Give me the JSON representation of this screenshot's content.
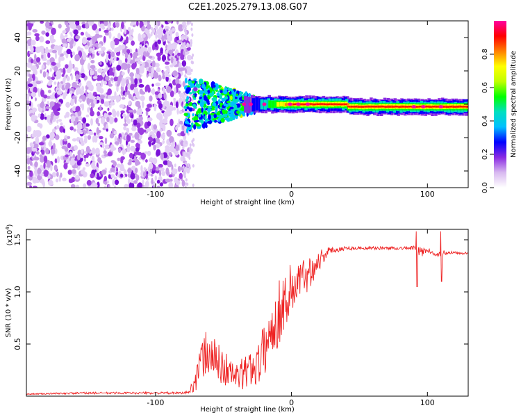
{
  "title": "C2E1.2025.279.13.08.G07",
  "chart_data": [
    {
      "type": "heatmap",
      "name": "spectrogram",
      "xlabel": "Height of straight line (km)",
      "ylabel": "Frequency (Hz)",
      "xlim": [
        -195,
        130
      ],
      "ylim": [
        -50,
        50
      ],
      "xticks": [
        -100,
        0,
        100
      ],
      "xtick_labels": [
        "-100",
        "0",
        "100"
      ],
      "yticks": [
        -40,
        -20,
        0,
        20,
        40
      ],
      "ytick_labels": [
        "-40",
        "-20",
        "0",
        "20",
        "40"
      ],
      "noise_region_x": [
        -195,
        -75
      ],
      "turbulent_region_x": [
        -78,
        -20
      ],
      "tone_frequency_hz": 0,
      "tone_frequency_offset_far_hz": -1.5,
      "colorbar": {
        "label": "Normalized spectral amplitude",
        "range": [
          0,
          1
        ],
        "ticks": [
          0.0,
          0.2,
          0.4,
          0.6,
          0.8
        ],
        "tick_labels": [
          "0.0",
          "0.2",
          "0.4",
          "0.6",
          "0.8"
        ],
        "colors": [
          "#ffffff",
          "#d8b8f0",
          "#8a2be2",
          "#0000ff",
          "#00c0ff",
          "#00e0c0",
          "#00ff00",
          "#c0ff00",
          "#ffff00",
          "#ff8000",
          "#ff0000",
          "#ff00a0"
        ]
      }
    },
    {
      "type": "line",
      "name": "snr",
      "xlabel": "Height of straight line (km)",
      "ylabel": "SNR (10 * v/v)",
      "y_multiplier_label": "(x10",
      "y_multiplier_exp": "4",
      "xlim": [
        -195,
        130
      ],
      "ylim": [
        0,
        1.6
      ],
      "xticks": [
        -100,
        0,
        100
      ],
      "xtick_labels": [
        "-100",
        "0",
        "100"
      ],
      "yticks": [
        0.5,
        1.0,
        1.5
      ],
      "ytick_labels": [
        "0.5",
        "1.0",
        "1.5"
      ],
      "color": "#ee2222",
      "series": [
        {
          "name": "SNR",
          "x": [
            -195,
            -150,
            -120,
            -95,
            -80,
            -75,
            -70,
            -65,
            -60,
            -55,
            -50,
            -45,
            -40,
            -35,
            -30,
            -25,
            -20,
            -15,
            -10,
            -5,
            0,
            5,
            10,
            15,
            20,
            25,
            30,
            40,
            50,
            60,
            70,
            80,
            90,
            95,
            100,
            105,
            110,
            115,
            120,
            130
          ],
          "values": [
            0.02,
            0.03,
            0.03,
            0.03,
            0.03,
            0.04,
            0.18,
            0.38,
            0.42,
            0.32,
            0.28,
            0.22,
            0.18,
            0.22,
            0.27,
            0.3,
            0.45,
            0.62,
            0.78,
            0.92,
            1.02,
            1.1,
            1.15,
            1.22,
            1.3,
            1.37,
            1.4,
            1.42,
            1.42,
            1.42,
            1.42,
            1.42,
            1.42,
            1.38,
            1.4,
            1.37,
            1.36,
            1.38,
            1.38,
            1.37
          ],
          "spread": [
            0.005,
            0.01,
            0.01,
            0.01,
            0.01,
            0.02,
            0.12,
            0.22,
            0.25,
            0.2,
            0.18,
            0.16,
            0.14,
            0.16,
            0.18,
            0.2,
            0.25,
            0.3,
            0.32,
            0.3,
            0.28,
            0.22,
            0.18,
            0.15,
            0.12,
            0.06,
            0.03,
            0.02,
            0.015,
            0.015,
            0.015,
            0.015,
            0.02,
            0.06,
            0.02,
            0.02,
            0.04,
            0.02,
            0.015,
            0.015
          ]
        }
      ],
      "spikes": [
        {
          "x": 92,
          "values": [
            1.58,
            1.05
          ]
        },
        {
          "x": 110,
          "values": [
            1.58,
            1.1
          ]
        }
      ]
    }
  ]
}
